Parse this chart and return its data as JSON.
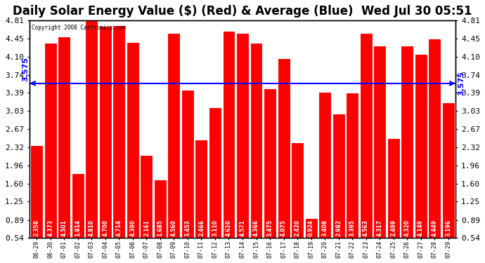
{
  "title": "Daily Solar Energy Value ($) (Red) & Average (Blue)  Wed Jul 30 05:51",
  "copyright": "Copyright 2008 Cartronics.com",
  "average": 3.575,
  "bar_color": "#FF0000",
  "avg_line_color": "#0000FF",
  "background_color": "#FFFFFF",
  "plot_bg_color": "#FFFFFF",
  "categories": [
    "06-29",
    "06-30",
    "07-01",
    "07-02",
    "07-03",
    "07-04",
    "07-05",
    "07-06",
    "07-07",
    "07-08",
    "07-09",
    "07-10",
    "07-11",
    "07-12",
    "07-13",
    "07-14",
    "07-15",
    "07-16",
    "07-17",
    "07-18",
    "07-19",
    "07-20",
    "07-21",
    "07-22",
    "07-23",
    "07-24",
    "07-25",
    "07-26",
    "07-27",
    "07-28",
    "07-29"
  ],
  "values": [
    2.358,
    4.373,
    4.501,
    1.814,
    4.81,
    4.7,
    4.714,
    4.39,
    2.161,
    1.685,
    4.56,
    3.453,
    2.466,
    3.11,
    4.61,
    4.571,
    4.366,
    3.475,
    4.075,
    2.42,
    0.924,
    3.408,
    2.982,
    3.395,
    4.563,
    4.317,
    2.499,
    4.32,
    4.149,
    4.449,
    3.196
  ],
  "ylim_min": 0.54,
  "ylim_max": 4.81,
  "yticks": [
    0.54,
    0.89,
    1.25,
    1.6,
    1.96,
    2.32,
    2.67,
    3.03,
    3.39,
    3.74,
    4.1,
    4.45,
    4.81
  ],
  "grid_color": "#AAAAAA",
  "title_fontsize": 12,
  "label_fontsize": 6.0,
  "tick_fontsize": 8.0,
  "val_fontsize": 5.5
}
